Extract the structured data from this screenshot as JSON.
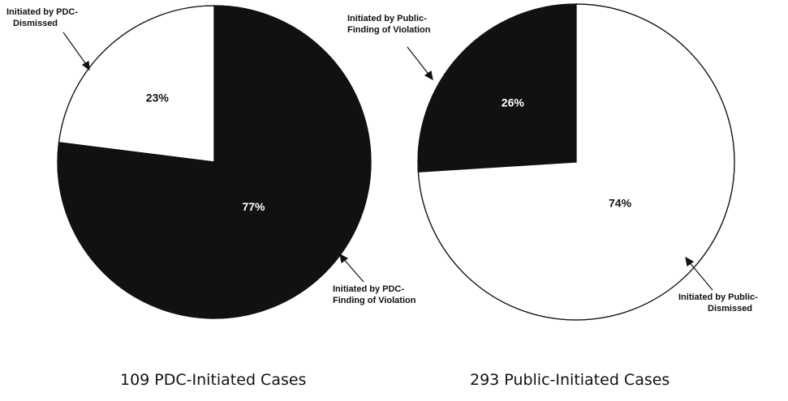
{
  "chart_data": [
    {
      "type": "pie",
      "title": "109 PDC-Initiated Cases",
      "slices": [
        {
          "label": "Initiated by PDC-Dismissed",
          "value": 23,
          "value_label": "23%",
          "color": "#ffffff"
        },
        {
          "label": "Initiated by PDC-Finding of Violation",
          "value": 77,
          "value_label": "77%",
          "color": "#111111"
        }
      ]
    },
    {
      "type": "pie",
      "title": "293 Public-Initiated Cases",
      "slices": [
        {
          "label": "Initiated by Public-Finding of Violation",
          "value": 26,
          "value_label": "26%",
          "color": "#111111"
        },
        {
          "label": "Initiated by Public-Dismissed",
          "value": 74,
          "value_label": "74%",
          "color": "#ffffff"
        }
      ]
    }
  ],
  "callouts": {
    "pdc_dismissed": [
      "Initiated by PDC-",
      "Dismissed"
    ],
    "pdc_violation": [
      "Initiated by PDC-",
      "Finding of Violation"
    ],
    "public_violation": [
      "Initiated by Public-",
      "Finding of Violation"
    ],
    "public_dismissed": [
      "Initiated by Public-",
      "Dismissed"
    ]
  }
}
